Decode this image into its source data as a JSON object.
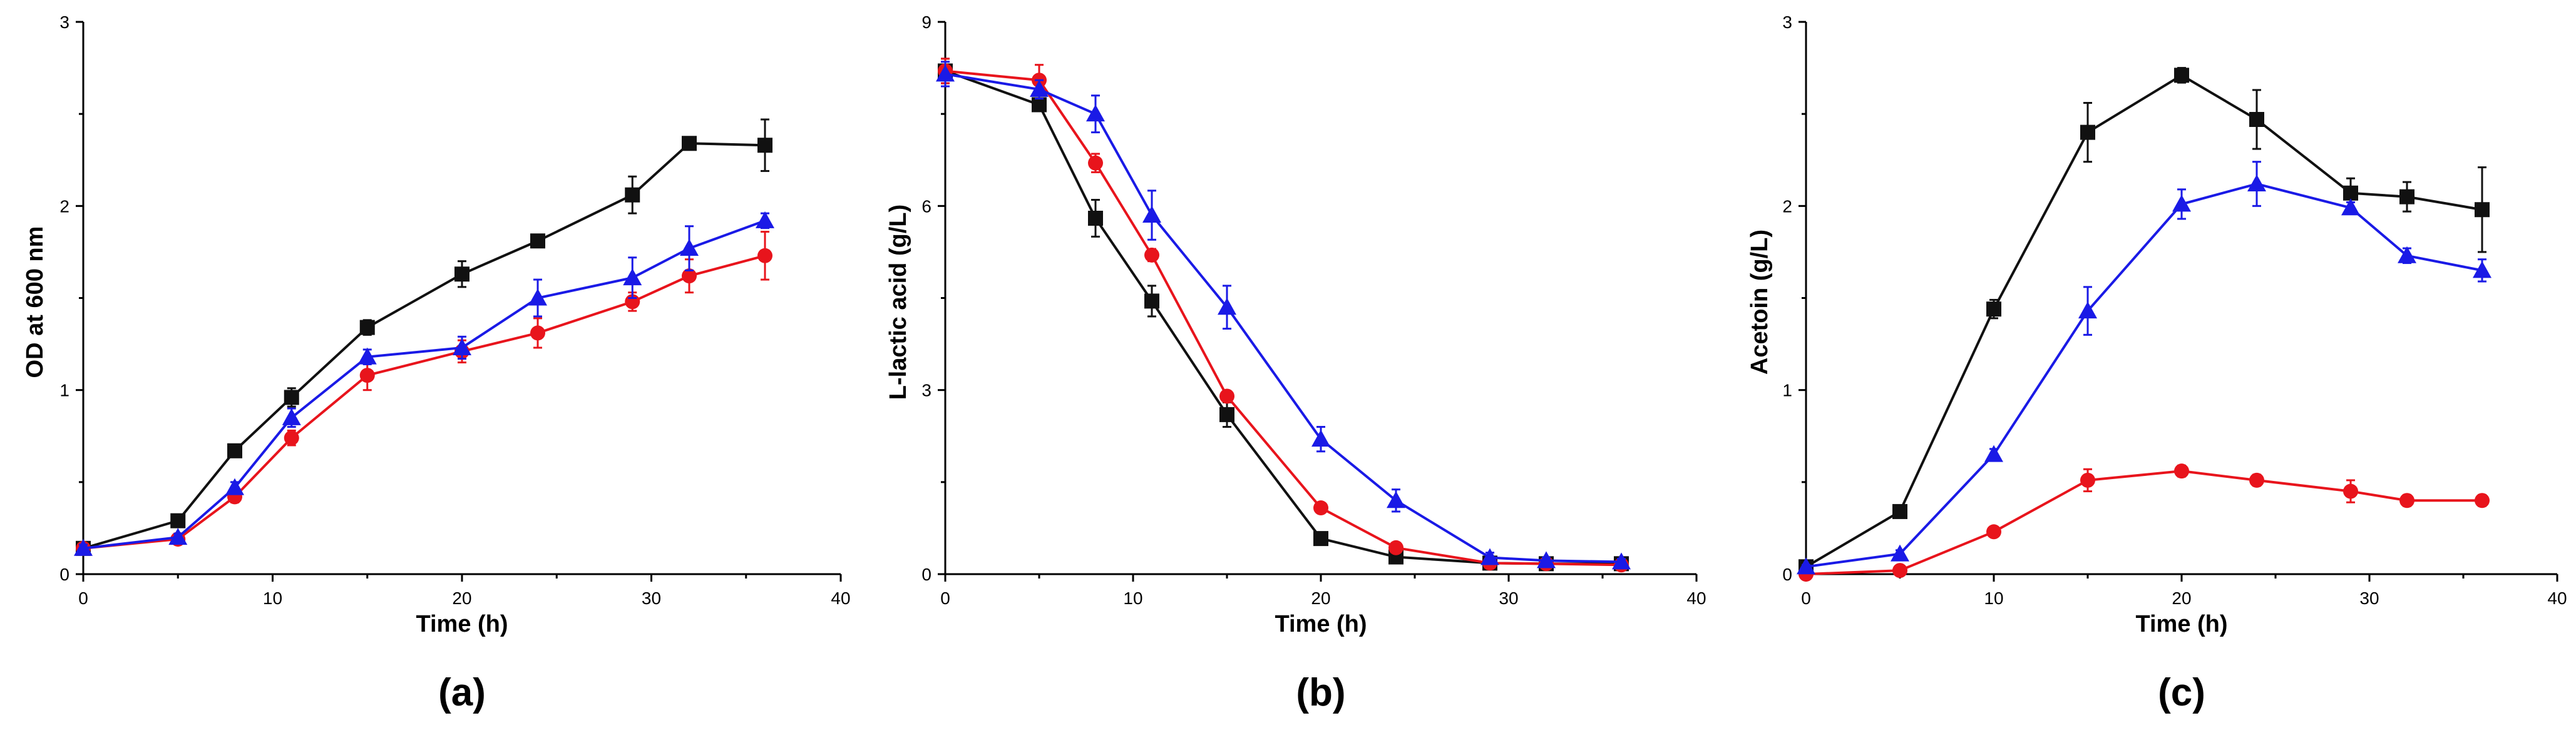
{
  "colors": {
    "black": "#111111",
    "red": "#e8141c",
    "blue": "#1a1ae6"
  },
  "chart_data": [
    {
      "type": "line",
      "panel_label": "(a)",
      "xlabel": "Time (h)",
      "ylabel": "OD at 600 nm",
      "xlim": [
        0,
        40
      ],
      "ylim": [
        0,
        3
      ],
      "xticks": [
        0,
        10,
        20,
        30,
        40
      ],
      "yticks": [
        0,
        1,
        2,
        3
      ],
      "series": [
        {
          "color": "black",
          "marker": "square",
          "x": [
            0,
            5,
            8,
            11,
            15,
            20,
            24,
            29,
            32,
            36
          ],
          "y": [
            0.14,
            0.29,
            0.67,
            0.96,
            1.34,
            1.63,
            1.81,
            2.06,
            2.34,
            2.33
          ],
          "err": [
            0.02,
            0.02,
            0.03,
            0.05,
            0.04,
            0.07,
            0.03,
            0.1,
            0.03,
            0.14
          ]
        },
        {
          "color": "red",
          "marker": "circle",
          "x": [
            0,
            5,
            8,
            11,
            15,
            20,
            24,
            29,
            32,
            36
          ],
          "y": [
            0.14,
            0.19,
            0.42,
            0.74,
            1.08,
            1.21,
            1.31,
            1.48,
            1.62,
            1.73
          ],
          "err": [
            0.02,
            0.02,
            0.03,
            0.04,
            0.08,
            0.06,
            0.08,
            0.05,
            0.09,
            0.13
          ]
        },
        {
          "color": "blue",
          "marker": "triangle",
          "x": [
            0,
            5,
            8,
            11,
            15,
            20,
            24,
            29,
            32,
            36
          ],
          "y": [
            0.14,
            0.2,
            0.47,
            0.85,
            1.18,
            1.23,
            1.5,
            1.61,
            1.77,
            1.92
          ],
          "err": [
            0.02,
            0.02,
            0.03,
            0.05,
            0.04,
            0.06,
            0.1,
            0.11,
            0.12,
            0.04
          ]
        }
      ]
    },
    {
      "type": "line",
      "panel_label": "(b)",
      "xlabel": "Time (h)",
      "ylabel": "L-lactic acid (g/L)",
      "xlim": [
        0,
        40
      ],
      "ylim": [
        0,
        9
      ],
      "xticks": [
        0,
        10,
        20,
        30,
        40
      ],
      "yticks": [
        0,
        3,
        6,
        9
      ],
      "series": [
        {
          "color": "black",
          "marker": "square",
          "x": [
            0,
            5,
            8,
            11,
            15,
            20,
            24,
            29,
            32,
            36
          ],
          "y": [
            8.2,
            7.65,
            5.8,
            4.45,
            2.6,
            0.58,
            0.28,
            0.18,
            0.17,
            0.17
          ],
          "err": [
            0.2,
            0.1,
            0.3,
            0.25,
            0.2,
            0.05,
            0.05,
            0.05,
            0.05,
            0.05
          ]
        },
        {
          "color": "red",
          "marker": "circle",
          "x": [
            0,
            5,
            8,
            11,
            15,
            20,
            24,
            29,
            32,
            36
          ],
          "y": [
            8.2,
            8.05,
            6.7,
            5.2,
            2.9,
            1.08,
            0.43,
            0.18,
            0.17,
            0.15
          ],
          "err": [
            0.2,
            0.25,
            0.15,
            0.1,
            0.08,
            0.05,
            0.05,
            0.05,
            0.05,
            0.05
          ]
        },
        {
          "color": "blue",
          "marker": "triangle",
          "x": [
            0,
            5,
            8,
            11,
            15,
            20,
            24,
            29,
            32,
            36
          ],
          "y": [
            8.15,
            7.9,
            7.5,
            5.85,
            4.35,
            2.2,
            1.2,
            0.27,
            0.22,
            0.2
          ],
          "err": [
            0.2,
            0.15,
            0.3,
            0.4,
            0.35,
            0.2,
            0.18,
            0.08,
            0.05,
            0.05
          ]
        }
      ]
    },
    {
      "type": "line",
      "panel_label": "(c)",
      "xlabel": "Time (h)",
      "ylabel": "Acetoin (g/L)",
      "xlim": [
        0,
        40
      ],
      "ylim": [
        0,
        3
      ],
      "xticks": [
        0,
        10,
        20,
        30,
        40
      ],
      "yticks": [
        0,
        1,
        2,
        3
      ],
      "series": [
        {
          "color": "black",
          "marker": "square",
          "x": [
            0,
            5,
            10,
            15,
            20,
            24,
            29,
            32,
            36
          ],
          "y": [
            0.04,
            0.34,
            1.44,
            2.4,
            2.71,
            2.47,
            2.07,
            2.05,
            1.98
          ],
          "err": [
            0.01,
            0.02,
            0.05,
            0.16,
            0.04,
            0.16,
            0.08,
            0.08,
            0.23
          ]
        },
        {
          "color": "red",
          "marker": "circle",
          "x": [
            0,
            5,
            10,
            15,
            20,
            24,
            29,
            32,
            36
          ],
          "y": [
            0.0,
            0.02,
            0.23,
            0.51,
            0.56,
            0.51,
            0.45,
            0.4,
            0.4
          ],
          "err": [
            0.01,
            0.01,
            0.02,
            0.06,
            0.03,
            0.03,
            0.06,
            0.03,
            0.03
          ]
        },
        {
          "color": "blue",
          "marker": "triangle",
          "x": [
            0,
            5,
            10,
            15,
            20,
            24,
            29,
            32,
            36
          ],
          "y": [
            0.04,
            0.11,
            0.65,
            1.43,
            2.01,
            2.12,
            1.99,
            1.73,
            1.65
          ],
          "err": [
            0.01,
            0.02,
            0.03,
            0.13,
            0.08,
            0.12,
            0.03,
            0.04,
            0.06
          ]
        }
      ]
    }
  ]
}
